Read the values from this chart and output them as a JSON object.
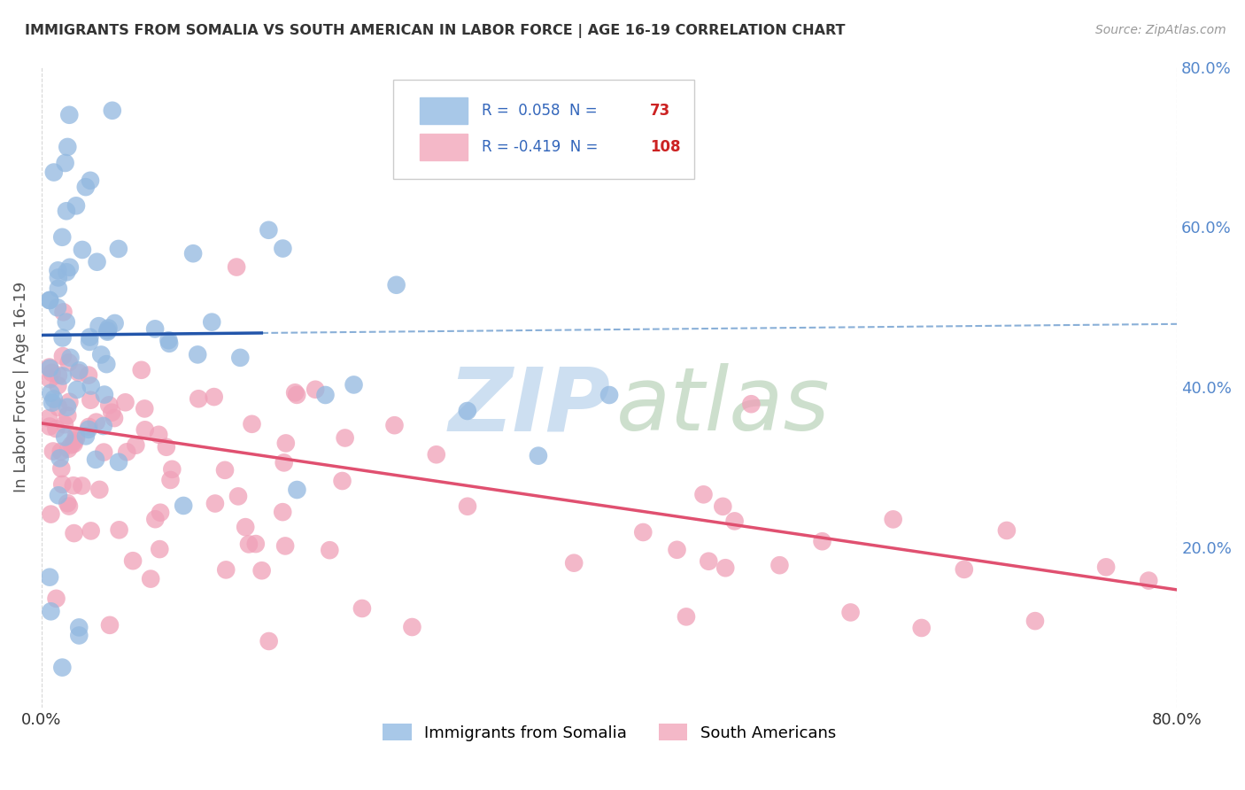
{
  "title": "IMMIGRANTS FROM SOMALIA VS SOUTH AMERICAN IN LABOR FORCE | AGE 16-19 CORRELATION CHART",
  "source": "Source: ZipAtlas.com",
  "ylabel": "In Labor Force | Age 16-19",
  "xlim": [
    0.0,
    0.8
  ],
  "ylim": [
    0.0,
    0.8
  ],
  "x_tick_labels": [
    "0.0%",
    "80.0%"
  ],
  "y_tick_labels_right": [
    "20.0%",
    "40.0%",
    "60.0%",
    "80.0%"
  ],
  "y_tick_vals_right": [
    0.2,
    0.4,
    0.6,
    0.8
  ],
  "legend_labels_bottom": [
    "Immigrants from Somalia",
    "South Americans"
  ],
  "somalia_color": "#92b8e0",
  "south_american_color": "#f0a0b8",
  "somalia_line_color": "#2255aa",
  "somalia_dash_color": "#8ab0d8",
  "south_american_line_color": "#e05070",
  "background_color": "#ffffff",
  "grid_color": "#cccccc",
  "title_color": "#333333",
  "axis_label_color": "#555555",
  "right_tick_color": "#5588cc",
  "somalia_R": 0.058,
  "somalia_N": 73,
  "south_american_R": -0.419,
  "south_american_N": 108,
  "legend_blue_color": "#a8c8e8",
  "legend_pink_color": "#f4b8c8",
  "legend_text_color": "#3366bb",
  "legend_N_color": "#cc2222",
  "watermark_zip_color": "#c8dcf0",
  "watermark_atlas_color": "#c8dcc8"
}
